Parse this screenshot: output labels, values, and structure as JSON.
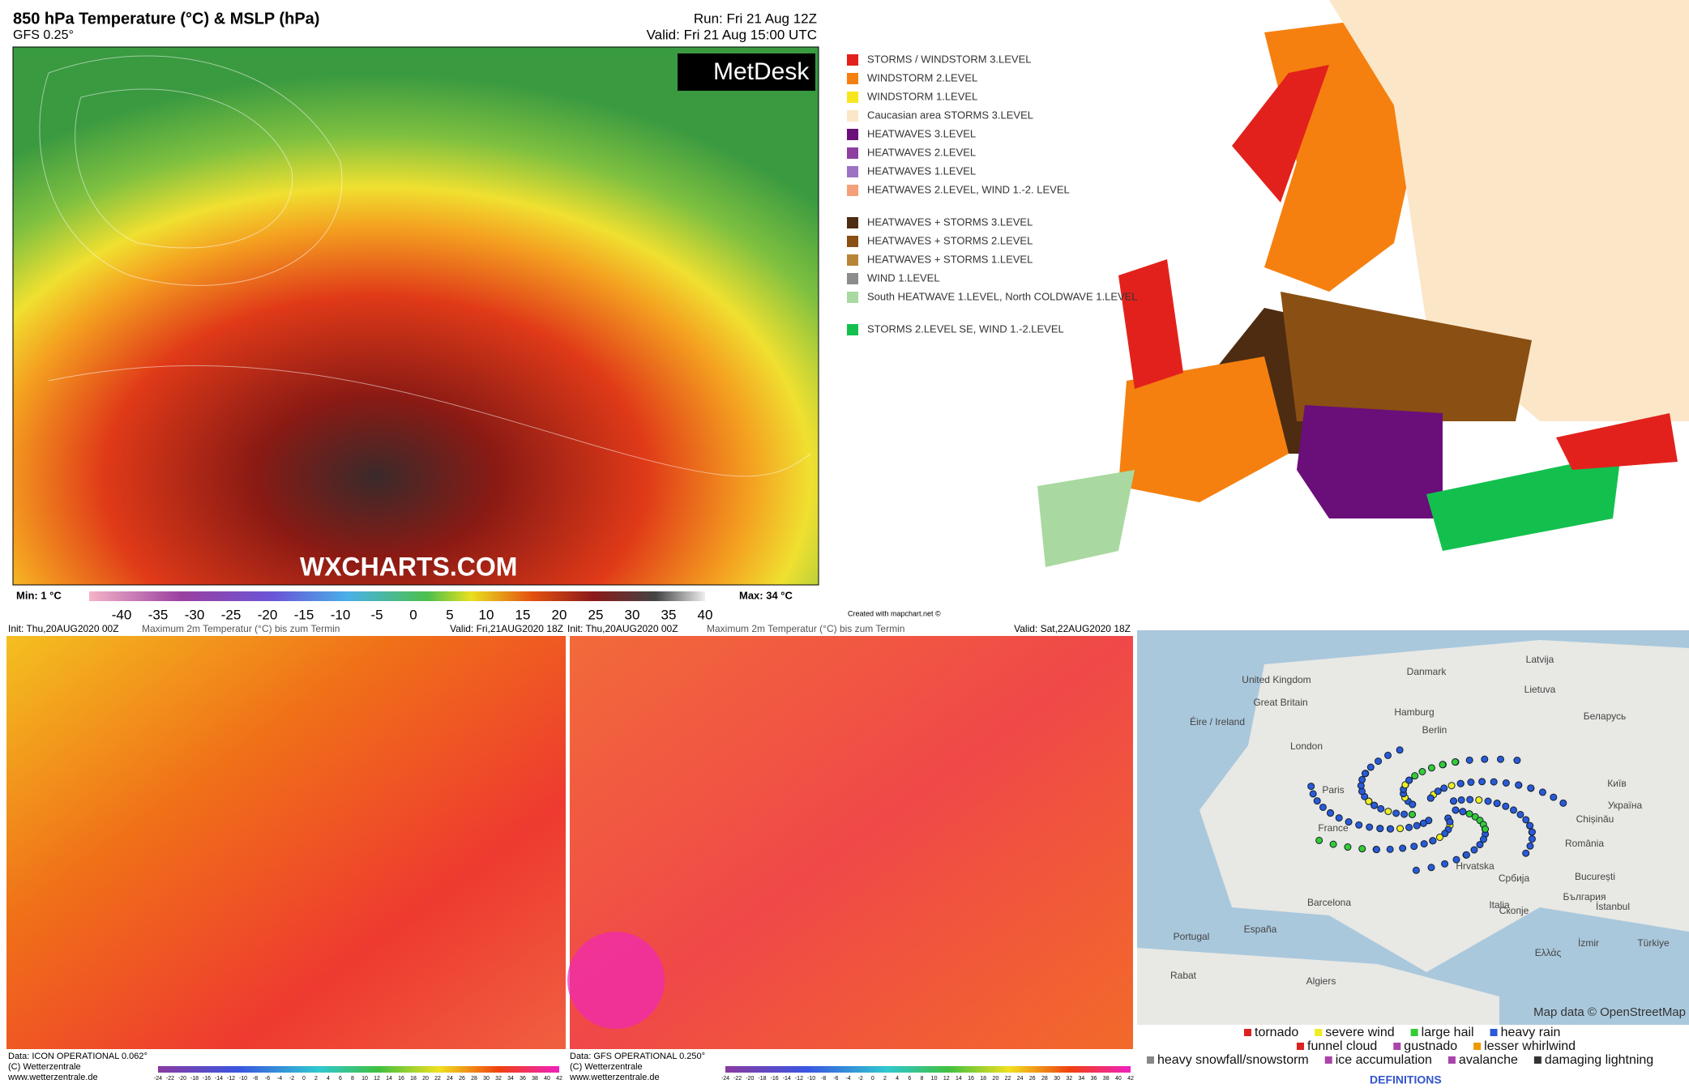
{
  "panel_850": {
    "title": "850 hPa Temperature (°C) & MSLP (hPa)",
    "subtitle": "GFS 0.25°",
    "run": "Run: Fri 21 Aug 12Z",
    "valid": "Valid: Fri 21 Aug 15:00 UTC",
    "brand": "MetDesk",
    "watermark": "WXCHARTS.COM",
    "min": "Min: 1 °C",
    "max": "Max: 34 °C",
    "colorbar_ticks": [
      -40,
      -35,
      -30,
      -25,
      -20,
      -15,
      -10,
      -5,
      0,
      5,
      10,
      15,
      20,
      25,
      30,
      35,
      40
    ]
  },
  "warning_map": {
    "legend": [
      {
        "label": "STORMS / WINDSTORM 3.LEVEL",
        "color": "#e3211c"
      },
      {
        "label": "WINDSTORM 2.LEVEL",
        "color": "#f5800f"
      },
      {
        "label": "WINDSTORM 1.LEVEL",
        "color": "#f7e61e"
      },
      {
        "label": "Caucasian area STORMS 3.LEVEL",
        "color": "#fbe6c8"
      },
      {
        "label": "HEATWAVES 3.LEVEL",
        "color": "#6a0e7a"
      },
      {
        "label": "HEATWAVES 2.LEVEL",
        "color": "#8e3fa0"
      },
      {
        "label": "HEATWAVES 1.LEVEL",
        "color": "#9d72c2"
      },
      {
        "label": "HEATWAVES 2.LEVEL, WIND 1.-2. LEVEL",
        "color": "#f4a07a"
      },
      {
        "label": "HEATWAVES + STORMS 3.LEVEL",
        "color": "#4d2c12"
      },
      {
        "label": "HEATWAVES + STORMS 2.LEVEL",
        "color": "#8a4f12"
      },
      {
        "label": "HEATWAVES + STORMS 1.LEVEL",
        "color": "#b88538"
      },
      {
        "label": "WIND 1.LEVEL",
        "color": "#8c8c8c"
      },
      {
        "label": "South HEATWAVE 1.LEVEL, North COLDWAVE 1.LEVEL",
        "color": "#a9d9a0"
      },
      {
        "label": "STORMS 2.LEVEL SE, WIND 1.-2.LEVEL",
        "color": "#13c04e"
      }
    ],
    "credit": "Created with mapchart.net ©"
  },
  "icon_panel": {
    "init": "Init: Thu,20AUG2020 00Z",
    "title": "Maximum 2m Temperatur (°C) bis zum Termin",
    "valid": "Valid: Fri,21AUG2020 18Z",
    "data": "Data: ICON OPERATIONAL 0.062°",
    "copyright": "(C) Wetterzentrale",
    "url": "www.wetterzentrale.de"
  },
  "gfs_panel": {
    "init": "Init: Thu,20AUG2020 00Z",
    "title": "Maximum 2m Temperatur (°C) bis zum Termin",
    "valid": "Valid: Sat,22AUG2020 18Z",
    "data": "Data: GFS OPERATIONAL 0.250°",
    "copyright": "(C) Wetterzentrale",
    "url": "www.wetterzentrale.de"
  },
  "scale_ticks": [
    -24,
    -22,
    -20,
    -18,
    -16,
    -14,
    -12,
    -10,
    -8,
    -6,
    -4,
    -2,
    0,
    2,
    4,
    6,
    8,
    10,
    12,
    14,
    16,
    18,
    20,
    22,
    24,
    26,
    28,
    30,
    32,
    34,
    36,
    38,
    40,
    42
  ],
  "eswd_map": {
    "places": [
      "Latvija",
      "Lietuva",
      "Danmark",
      "United Kingdom",
      "Great Britain",
      "Éire / Ireland",
      "London",
      "Hamburg",
      "Berlin",
      "Paris",
      "France",
      "Беларусь",
      "Київ",
      "Україна",
      "Chișinău",
      "România",
      "București",
      "България",
      "Србија",
      "Hrvatska",
      "Скопје",
      "Barcelona",
      "España",
      "Portugal",
      "Italia",
      "Ελλάς",
      "İstanbul",
      "İzmir",
      "Türkiye",
      "Rabat",
      "Algiers"
    ],
    "attribution": "Map data © OpenStreetMap",
    "legend": [
      "tornado",
      "severe wind",
      "large hail",
      "heavy rain",
      "funnel cloud",
      "gustnado",
      "lesser whirlwind",
      "heavy snowfall/snowstorm",
      "ice accumulation",
      "avalanche",
      "damaging lightning"
    ],
    "definitions": "DEFINITIONS"
  }
}
